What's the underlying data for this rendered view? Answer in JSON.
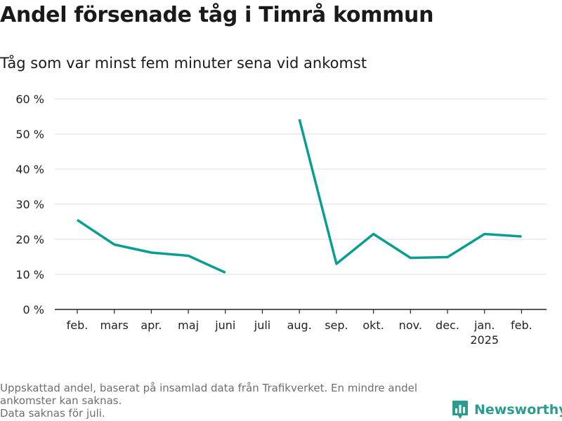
{
  "title": "Andel försenade tåg i Timrå kommun",
  "subtitle": "Tåg som var minst fem minuter sena vid ankomst",
  "footnote": {
    "line1": "Uppskattad andel, baserat på insamlad data från Trafikverket. En mindre andel",
    "line2": "ankomster kan saknas.",
    "line3": "Data saknas för juli."
  },
  "brand": {
    "name": "Newsworthy",
    "icon": "newsworthy-logo-icon",
    "color": "#2a9d8f"
  },
  "chart_data": {
    "type": "line",
    "categories": [
      "feb.",
      "mars",
      "apr.",
      "maj",
      "juni",
      "juli",
      "aug.",
      "sep.",
      "okt.",
      "nov.",
      "dec.",
      "jan.",
      "feb."
    ],
    "category_sublabels": [
      "",
      "",
      "",
      "",
      "",
      "",
      "",
      "",
      "",
      "",
      "",
      "2025",
      ""
    ],
    "series": [
      {
        "values": [
          25.5,
          18.5,
          16.2,
          15.3,
          10.5,
          null,
          54.2,
          13.0,
          21.5,
          14.7,
          14.9,
          21.5,
          20.8
        ]
      }
    ],
    "ylim": [
      0,
      60
    ],
    "yticks": [
      0,
      10,
      20,
      30,
      40,
      50,
      60
    ],
    "ytick_labels": [
      "0 %",
      "10 %",
      "20 %",
      "30 %",
      "40 %",
      "50 %",
      "60 %"
    ],
    "grid": true,
    "line_color": "#0a9d92",
    "xlabel": "",
    "ylabel": ""
  }
}
